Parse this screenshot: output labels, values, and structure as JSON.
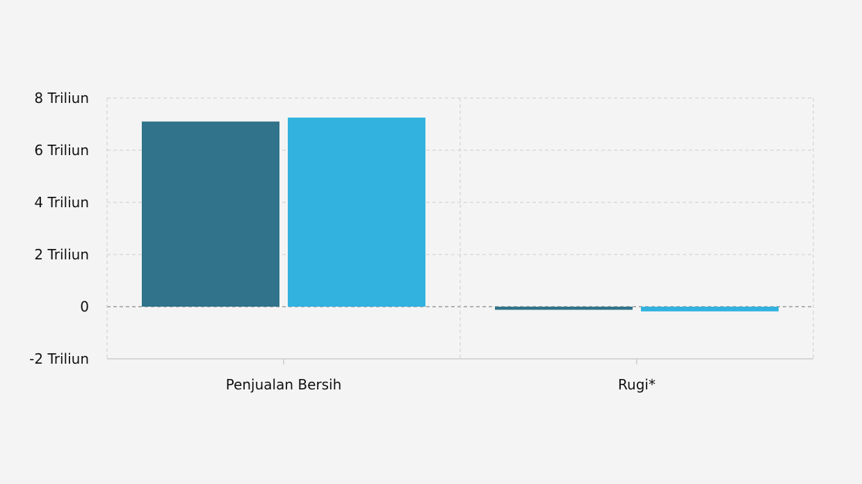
{
  "colors": {
    "background": "#f4f4f4",
    "grid": "#cccccc",
    "zero_line": "#888888",
    "axis": "#cccccc"
  },
  "chart_data": {
    "type": "bar",
    "title": "",
    "xlabel": "",
    "ylabel": "",
    "categories": [
      "Penjualan Bersih",
      "Rugi*"
    ],
    "series": [
      {
        "color": "#31738a",
        "values": [
          7.1,
          -0.12
        ]
      },
      {
        "color": "#31b2df",
        "values": [
          7.25,
          -0.18
        ]
      }
    ],
    "unit_scale": "Triliun",
    "ylim": [
      -2,
      8
    ],
    "yticks": [
      {
        "value": -2,
        "label": "-2 Triliun"
      },
      {
        "value": 0,
        "label": "0"
      },
      {
        "value": 2,
        "label": "2 Triliun"
      },
      {
        "value": 4,
        "label": "4 Triliun"
      },
      {
        "value": 6,
        "label": "6 Triliun"
      },
      {
        "value": 8,
        "label": "8 Triliun"
      }
    ],
    "grid": true,
    "legend": "none"
  }
}
